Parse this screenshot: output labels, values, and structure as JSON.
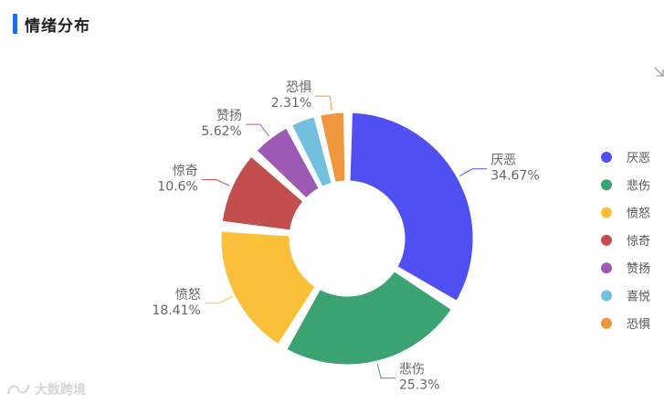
{
  "header": {
    "title": "情绪分布",
    "accent_color": "#1f6fe8"
  },
  "toolbar": {
    "download_icon": "download-icon"
  },
  "watermark": {
    "icon": "brand-logo-icon",
    "text": "大数跨境"
  },
  "chart_data": {
    "type": "pie",
    "style": "donut",
    "legend_position": "right",
    "categories": [
      "厌恶",
      "悲伤",
      "愤怒",
      "惊奇",
      "赞扬",
      "喜悦",
      "恐惧"
    ],
    "values": [
      34.67,
      25.3,
      18.41,
      10.6,
      5.62,
      null,
      2.31
    ],
    "value_labels": [
      "34.67%",
      "25.3%",
      "18.41%",
      "10.6%",
      "5.62%",
      null,
      "2.31%"
    ],
    "colors": [
      "#5050f2",
      "#3ba272",
      "#fac039",
      "#c24e4e",
      "#9d5ab5",
      "#73c0de",
      "#f0963e"
    ]
  }
}
